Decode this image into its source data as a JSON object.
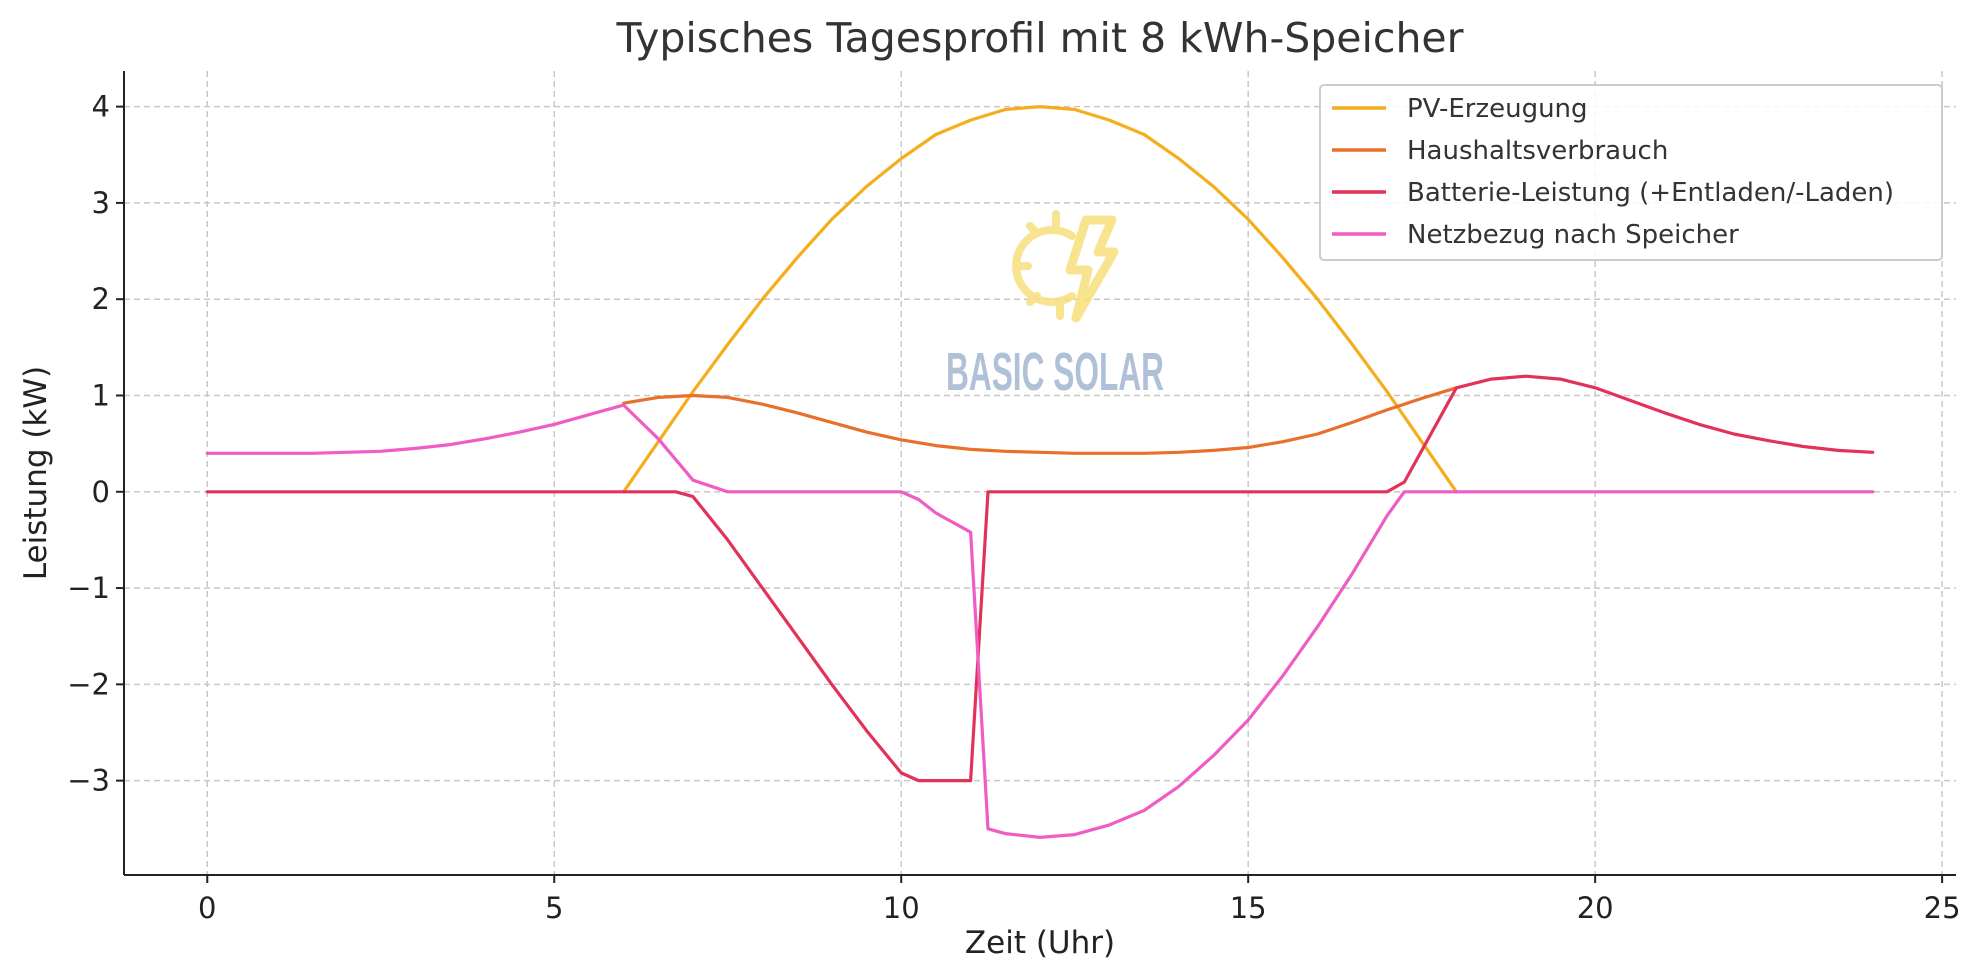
{
  "chart_data": {
    "type": "line",
    "title": "Typisches Tagesprofil mit 8 kWh-Speicher",
    "xlabel": "Zeit (Uhr)",
    "ylabel": "Leistung (kW)",
    "xlim": [
      -1.2,
      25.2
    ],
    "ylim": [
      -3.98,
      4.37
    ],
    "xticks": [
      0,
      5,
      10,
      15,
      20,
      25
    ],
    "yticks": [
      4,
      3,
      2,
      1,
      0,
      -1,
      -2,
      -3
    ],
    "ytick_labels": [
      "4",
      "3",
      "2",
      "1",
      "0",
      "−1",
      "−2",
      "−3"
    ],
    "grid": true,
    "legend_position": "top-right",
    "watermark": "BASIC SOLAR",
    "series": [
      {
        "name": "PV-Erzeugung",
        "color": "#f5ae1b",
        "x": [
          6,
          6.5,
          7,
          7.5,
          8,
          8.5,
          9,
          9.5,
          10,
          10.5,
          11,
          11.5,
          12,
          12.5,
          13,
          13.5,
          14,
          14.5,
          15,
          15.5,
          16,
          16.5,
          17,
          17.5,
          18
        ],
        "y": [
          0,
          0.52,
          1.04,
          1.53,
          2.0,
          2.43,
          2.83,
          3.17,
          3.46,
          3.71,
          3.86,
          3.97,
          4.0,
          3.97,
          3.86,
          3.71,
          3.46,
          3.17,
          2.83,
          2.43,
          2.0,
          1.53,
          1.04,
          0.52,
          0
        ]
      },
      {
        "name": "Haushaltsverbrauch",
        "color": "#e8702a",
        "x": [
          6,
          6.5,
          7,
          7.5,
          8,
          8.5,
          9,
          9.5,
          10,
          10.5,
          11,
          11.5,
          12,
          12.5,
          13,
          13.5,
          14,
          14.5,
          15,
          15.5,
          16,
          16.5,
          17,
          17.5,
          18
        ],
        "y": [
          0.92,
          0.98,
          1.0,
          0.98,
          0.91,
          0.82,
          0.72,
          0.62,
          0.54,
          0.48,
          0.44,
          0.42,
          0.41,
          0.4,
          0.4,
          0.4,
          0.41,
          0.43,
          0.46,
          0.52,
          0.6,
          0.72,
          0.85,
          0.97,
          1.08
        ]
      },
      {
        "name": "Batterie-Leistung (+Entladen/-Laden)",
        "color": "#e33259",
        "x": [
          0,
          1,
          2,
          3,
          4,
          5,
          6,
          6.75,
          7,
          7.5,
          8,
          8.5,
          9,
          9.5,
          10,
          10.25,
          10.5,
          11,
          11.25,
          12,
          13,
          14,
          15,
          16,
          17,
          17.25,
          18,
          18.5,
          19,
          19.5,
          20,
          20.5,
          21,
          21.5,
          22,
          22.5,
          23,
          23.5,
          24
        ],
        "y": [
          0,
          0,
          0,
          0,
          0,
          0,
          0,
          0,
          -0.05,
          -0.5,
          -1.0,
          -1.5,
          -2.0,
          -2.48,
          -2.92,
          -3.0,
          -3.0,
          -3.0,
          0,
          0,
          0,
          0,
          0,
          0,
          0,
          0.1,
          1.08,
          1.17,
          1.2,
          1.17,
          1.08,
          0.95,
          0.82,
          0.7,
          0.6,
          0.53,
          0.47,
          0.43,
          0.41
        ]
      },
      {
        "name": "Netzbezug nach Speicher",
        "color": "#ee5cc4",
        "x": [
          0,
          0.5,
          1,
          1.5,
          2,
          2.5,
          3,
          3.5,
          4,
          4.5,
          5,
          5.5,
          6,
          6.5,
          7,
          7.5,
          8,
          9,
          10,
          10.25,
          10.5,
          11,
          11.25,
          11.5,
          12,
          12.5,
          13,
          13.5,
          14,
          14.5,
          15,
          15.5,
          16,
          16.5,
          17,
          17.25,
          17.5,
          18,
          19,
          20,
          21,
          22,
          23,
          24
        ],
        "y": [
          0.4,
          0.4,
          0.4,
          0.4,
          0.41,
          0.42,
          0.45,
          0.49,
          0.55,
          0.62,
          0.7,
          0.8,
          0.9,
          0.55,
          0.12,
          0,
          0,
          0,
          0,
          -0.08,
          -0.22,
          -0.42,
          -3.5,
          -3.55,
          -3.59,
          -3.56,
          -3.46,
          -3.31,
          -3.06,
          -2.74,
          -2.37,
          -1.91,
          -1.4,
          -0.85,
          -0.25,
          0,
          0,
          0,
          0,
          0,
          0,
          0,
          0,
          0
        ]
      }
    ]
  }
}
